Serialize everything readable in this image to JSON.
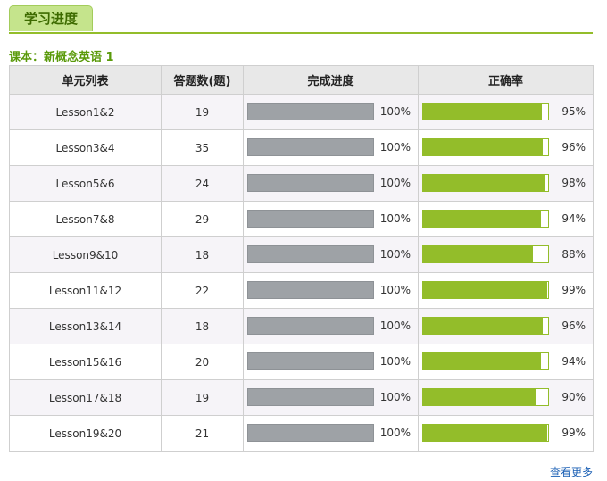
{
  "tab": {
    "label": "学习进度"
  },
  "course": {
    "label": "课本：新概念英语 1"
  },
  "table": {
    "headers": [
      "单元列表",
      "答题数(题)",
      "完成进度",
      "正确率"
    ],
    "rows": [
      {
        "unit": "Lesson1&2",
        "count": "19",
        "progress": "100%",
        "progress_value": 100,
        "accuracy": "95%",
        "accuracy_value": 95
      },
      {
        "unit": "Lesson3&4",
        "count": "35",
        "progress": "100%",
        "progress_value": 100,
        "accuracy": "96%",
        "accuracy_value": 96
      },
      {
        "unit": "Lesson5&6",
        "count": "24",
        "progress": "100%",
        "progress_value": 100,
        "accuracy": "98%",
        "accuracy_value": 98
      },
      {
        "unit": "Lesson7&8",
        "count": "29",
        "progress": "100%",
        "progress_value": 100,
        "accuracy": "94%",
        "accuracy_value": 94
      },
      {
        "unit": "Lesson9&10",
        "count": "18",
        "progress": "100%",
        "progress_value": 100,
        "accuracy": "88%",
        "accuracy_value": 88
      },
      {
        "unit": "Lesson11&12",
        "count": "22",
        "progress": "100%",
        "progress_value": 100,
        "accuracy": "99%",
        "accuracy_value": 99
      },
      {
        "unit": "Lesson13&14",
        "count": "18",
        "progress": "100%",
        "progress_value": 100,
        "accuracy": "96%",
        "accuracy_value": 96
      },
      {
        "unit": "Lesson15&16",
        "count": "20",
        "progress": "100%",
        "progress_value": 100,
        "accuracy": "94%",
        "accuracy_value": 94
      },
      {
        "unit": "Lesson17&18",
        "count": "19",
        "progress": "100%",
        "progress_value": 100,
        "accuracy": "90%",
        "accuracy_value": 90
      },
      {
        "unit": "Lesson19&20",
        "count": "21",
        "progress": "100%",
        "progress_value": 100,
        "accuracy": "99%",
        "accuracy_value": 99
      }
    ]
  },
  "more_link": {
    "label": "查看更多"
  },
  "colors": {
    "accent_green": "#93bd2a",
    "progress_gray": "#9ea2a6",
    "link_blue": "#1a5fb4"
  }
}
